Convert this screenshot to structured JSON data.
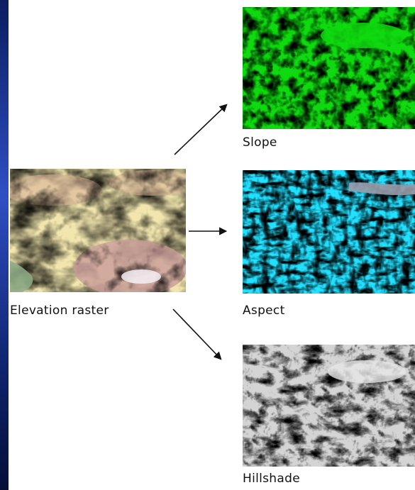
{
  "diagram": {
    "source": {
      "label": "Elevation raster",
      "image": "elevation-raster-image"
    },
    "outputs": [
      {
        "label": "Slope",
        "image": "slope-raster-image"
      },
      {
        "label": "Aspect",
        "image": "aspect-raster-image"
      },
      {
        "label": "Hillshade",
        "image": "hillshade-raster-image"
      }
    ]
  },
  "colors": {
    "background_outer": "#0f2470",
    "panel": "#ffffff",
    "arrow": "#111111",
    "elevation_low": "#f2e6ae",
    "elevation_mid": "#e2c49a",
    "elevation_high": "#bb8f96",
    "slope_flat": "#0fd90f",
    "slope_mid": "#d8e21a",
    "slope_steep": "#f28a1e",
    "aspect_red": "#ff2222",
    "aspect_cyan": "#22e0ff",
    "aspect_magenta": "#e03ce0",
    "hillshade_light": "#efefef",
    "hillshade_dark": "#2a2a2a"
  }
}
